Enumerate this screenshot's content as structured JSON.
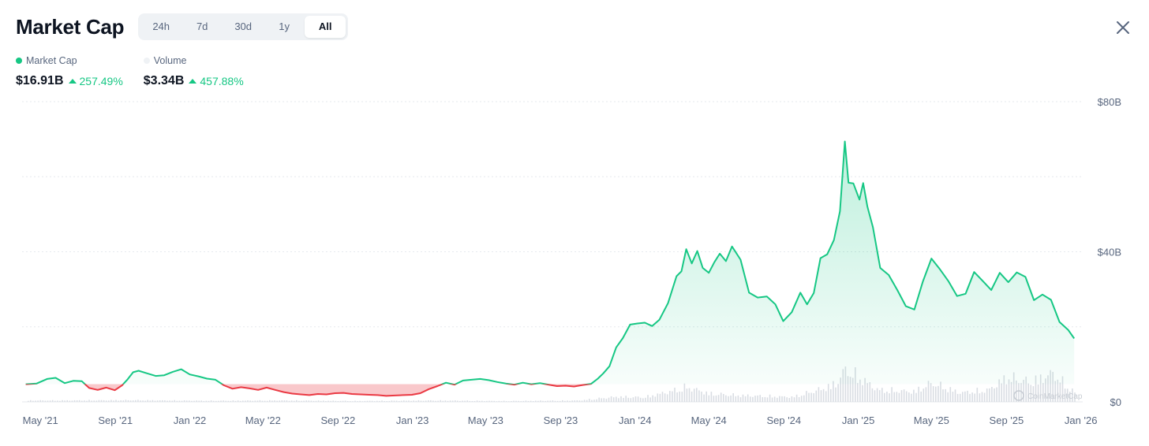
{
  "header": {
    "title": "Market Cap",
    "tabs": [
      {
        "label": "24h",
        "active": false
      },
      {
        "label": "7d",
        "active": false
      },
      {
        "label": "30d",
        "active": false
      },
      {
        "label": "1y",
        "active": false
      },
      {
        "label": "All",
        "active": true
      }
    ]
  },
  "legend": {
    "market_cap": {
      "label": "Market Cap",
      "value": "$16.91B",
      "change": "257.49%",
      "color": "#16c784"
    },
    "volume": {
      "label": "Volume",
      "value": "$3.34B",
      "change": "457.88%",
      "color": "#eff2f5"
    }
  },
  "watermark": "CoinMarketCap",
  "colors": {
    "up": "#16c784",
    "down": "#ea3943",
    "grid": "#e6e9ee",
    "volume_bar": "#d9dde3"
  },
  "chart_data": {
    "type": "area",
    "xlabel": "",
    "ylabel": "",
    "ylim": [
      0,
      80
    ],
    "y_unit": "B USD",
    "yticks": [
      {
        "value": 0,
        "label": "$0"
      },
      {
        "value": 40,
        "label": "$40B"
      },
      {
        "value": 80,
        "label": "$80B"
      }
    ],
    "y_gridlines": [
      0,
      20,
      40,
      60,
      80
    ],
    "xlim": [
      "2021-04-01",
      "2026-01-04"
    ],
    "xticks": [
      {
        "date": "2021-05-01",
        "label": "May '21"
      },
      {
        "date": "2021-09-01",
        "label": "Sep '21"
      },
      {
        "date": "2022-01-01",
        "label": "Jan '22"
      },
      {
        "date": "2022-05-01",
        "label": "May '22"
      },
      {
        "date": "2022-09-01",
        "label": "Sep '22"
      },
      {
        "date": "2023-01-01",
        "label": "Jan '23"
      },
      {
        "date": "2023-05-01",
        "label": "May '23"
      },
      {
        "date": "2023-09-01",
        "label": "Sep '23"
      },
      {
        "date": "2024-01-01",
        "label": "Jan '24"
      },
      {
        "date": "2024-05-01",
        "label": "May '24"
      },
      {
        "date": "2024-09-01",
        "label": "Sep '24"
      },
      {
        "date": "2025-01-01",
        "label": "Jan '25"
      },
      {
        "date": "2025-05-01",
        "label": "May '25"
      },
      {
        "date": "2025-09-01",
        "label": "Sep '25"
      },
      {
        "date": "2026-01-01",
        "label": "Jan '26"
      }
    ],
    "baseline": 4.73,
    "series": [
      {
        "name": "Market Cap",
        "points": [
          [
            "2021-04-07",
            4.7
          ],
          [
            "2021-04-25",
            4.9
          ],
          [
            "2021-05-12",
            6.1
          ],
          [
            "2021-05-26",
            6.4
          ],
          [
            "2021-06-10",
            5.0
          ],
          [
            "2021-06-24",
            5.6
          ],
          [
            "2021-07-08",
            5.5
          ],
          [
            "2021-07-20",
            3.7
          ],
          [
            "2021-08-03",
            3.2
          ],
          [
            "2021-08-17",
            3.8
          ],
          [
            "2021-08-31",
            3.1
          ],
          [
            "2021-09-12",
            4.4
          ],
          [
            "2021-09-21",
            6.0
          ],
          [
            "2021-09-30",
            7.9
          ],
          [
            "2021-10-09",
            8.3
          ],
          [
            "2021-10-23",
            7.6
          ],
          [
            "2021-11-06",
            6.9
          ],
          [
            "2021-11-20",
            7.1
          ],
          [
            "2021-12-04",
            8.0
          ],
          [
            "2021-12-18",
            8.7
          ],
          [
            "2022-01-01",
            7.3
          ],
          [
            "2022-01-15",
            6.8
          ],
          [
            "2022-01-29",
            6.2
          ],
          [
            "2022-02-12",
            5.9
          ],
          [
            "2022-02-26",
            4.4
          ],
          [
            "2022-03-12",
            3.5
          ],
          [
            "2022-03-26",
            3.9
          ],
          [
            "2022-04-09",
            3.6
          ],
          [
            "2022-04-23",
            3.2
          ],
          [
            "2022-05-07",
            3.8
          ],
          [
            "2022-05-21",
            3.2
          ],
          [
            "2022-06-04",
            2.6
          ],
          [
            "2022-06-18",
            2.2
          ],
          [
            "2022-07-02",
            2.0
          ],
          [
            "2022-07-16",
            1.8
          ],
          [
            "2022-07-30",
            2.1
          ],
          [
            "2022-08-13",
            2.0
          ],
          [
            "2022-08-27",
            2.3
          ],
          [
            "2022-09-10",
            2.4
          ],
          [
            "2022-09-24",
            2.1
          ],
          [
            "2022-10-08",
            2.0
          ],
          [
            "2022-10-22",
            1.9
          ],
          [
            "2022-11-05",
            1.8
          ],
          [
            "2022-11-19",
            1.6
          ],
          [
            "2022-12-03",
            1.7
          ],
          [
            "2022-12-17",
            1.8
          ],
          [
            "2022-12-31",
            1.9
          ],
          [
            "2023-01-14",
            2.3
          ],
          [
            "2023-01-28",
            3.4
          ],
          [
            "2023-02-11",
            4.2
          ],
          [
            "2023-02-25",
            5.1
          ],
          [
            "2023-03-11",
            4.6
          ],
          [
            "2023-03-25",
            5.7
          ],
          [
            "2023-04-08",
            5.9
          ],
          [
            "2023-04-22",
            6.1
          ],
          [
            "2023-05-06",
            5.8
          ],
          [
            "2023-05-20",
            5.3
          ],
          [
            "2023-06-03",
            4.9
          ],
          [
            "2023-06-17",
            4.6
          ],
          [
            "2023-07-01",
            5.1
          ],
          [
            "2023-07-15",
            4.7
          ],
          [
            "2023-07-29",
            5.0
          ],
          [
            "2023-08-12",
            4.6
          ],
          [
            "2023-08-26",
            4.2
          ],
          [
            "2023-09-09",
            4.3
          ],
          [
            "2023-09-23",
            4.1
          ],
          [
            "2023-10-07",
            4.5
          ],
          [
            "2023-10-21",
            4.8
          ],
          [
            "2023-11-01",
            6.2
          ],
          [
            "2023-11-10",
            7.6
          ],
          [
            "2023-11-20",
            9.5
          ],
          [
            "2023-12-01",
            14.5
          ],
          [
            "2023-12-12",
            17.0
          ],
          [
            "2023-12-24",
            20.6
          ],
          [
            "2024-01-05",
            20.9
          ],
          [
            "2024-01-17",
            21.1
          ],
          [
            "2024-01-29",
            20.2
          ],
          [
            "2024-02-10",
            21.9
          ],
          [
            "2024-02-24",
            26.3
          ],
          [
            "2024-03-09",
            33.5
          ],
          [
            "2024-03-17",
            34.8
          ],
          [
            "2024-03-25",
            40.7
          ],
          [
            "2024-04-03",
            36.9
          ],
          [
            "2024-04-12",
            40.2
          ],
          [
            "2024-04-21",
            35.7
          ],
          [
            "2024-05-01",
            34.4
          ],
          [
            "2024-05-10",
            37.2
          ],
          [
            "2024-05-19",
            39.5
          ],
          [
            "2024-05-29",
            37.5
          ],
          [
            "2024-06-08",
            41.4
          ],
          [
            "2024-06-22",
            37.9
          ],
          [
            "2024-07-06",
            29.1
          ],
          [
            "2024-07-20",
            27.8
          ],
          [
            "2024-08-04",
            28.1
          ],
          [
            "2024-08-18",
            26.0
          ],
          [
            "2024-08-31",
            21.5
          ],
          [
            "2024-09-14",
            23.9
          ],
          [
            "2024-09-28",
            29.1
          ],
          [
            "2024-10-09",
            26.0
          ],
          [
            "2024-10-20",
            29.0
          ],
          [
            "2024-10-31",
            38.3
          ],
          [
            "2024-11-11",
            39.3
          ],
          [
            "2024-11-22",
            43.1
          ],
          [
            "2024-12-02",
            50.8
          ],
          [
            "2024-12-10",
            69.4
          ],
          [
            "2024-12-16",
            58.4
          ],
          [
            "2024-12-24",
            58.2
          ],
          [
            "2025-01-03",
            53.9
          ],
          [
            "2025-01-09",
            58.3
          ],
          [
            "2025-01-16",
            52.0
          ],
          [
            "2025-01-25",
            46.6
          ],
          [
            "2025-02-06",
            35.7
          ],
          [
            "2025-02-20",
            33.8
          ],
          [
            "2025-03-06",
            29.8
          ],
          [
            "2025-03-20",
            25.5
          ],
          [
            "2025-04-03",
            24.6
          ],
          [
            "2025-04-17",
            32.1
          ],
          [
            "2025-05-01",
            38.2
          ],
          [
            "2025-05-15",
            35.3
          ],
          [
            "2025-05-29",
            32.1
          ],
          [
            "2025-06-12",
            28.2
          ],
          [
            "2025-06-26",
            28.8
          ],
          [
            "2025-07-10",
            34.6
          ],
          [
            "2025-07-24",
            32.2
          ],
          [
            "2025-08-07",
            29.8
          ],
          [
            "2025-08-21",
            34.4
          ],
          [
            "2025-09-04",
            31.9
          ],
          [
            "2025-09-18",
            34.5
          ],
          [
            "2025-10-02",
            33.3
          ],
          [
            "2025-10-16",
            27.1
          ],
          [
            "2025-10-30",
            28.6
          ],
          [
            "2025-11-13",
            27.2
          ],
          [
            "2025-11-27",
            21.3
          ],
          [
            "2025-12-11",
            19.2
          ],
          [
            "2025-12-21",
            16.91
          ]
        ]
      },
      {
        "name": "Volume",
        "points": [
          [
            "2021-06-01",
            0.5
          ],
          [
            "2021-10-01",
            0.6
          ],
          [
            "2022-02-01",
            0.4
          ],
          [
            "2022-06-01",
            0.5
          ],
          [
            "2022-10-01",
            0.3
          ],
          [
            "2023-02-01",
            0.5
          ],
          [
            "2023-06-01",
            0.3
          ],
          [
            "2023-10-01",
            0.5
          ],
          [
            "2023-12-01",
            1.8
          ],
          [
            "2024-01-15",
            1.6
          ],
          [
            "2024-03-01",
            3.8
          ],
          [
            "2024-03-25",
            5.2
          ],
          [
            "2024-05-01",
            2.9
          ],
          [
            "2024-06-15",
            2.3
          ],
          [
            "2024-08-01",
            2.0
          ],
          [
            "2024-09-15",
            1.7
          ],
          [
            "2024-11-01",
            4.5
          ],
          [
            "2024-11-25",
            6.4
          ],
          [
            "2024-12-10",
            11.2
          ],
          [
            "2025-01-05",
            8.1
          ],
          [
            "2025-02-01",
            4.2
          ],
          [
            "2025-04-01",
            3.6
          ],
          [
            "2025-05-01",
            6.6
          ],
          [
            "2025-06-15",
            3.2
          ],
          [
            "2025-08-01",
            4.1
          ],
          [
            "2025-09-01",
            8.6
          ],
          [
            "2025-10-10",
            6.9
          ],
          [
            "2025-11-15",
            9.9
          ],
          [
            "2025-12-20",
            3.34
          ]
        ]
      }
    ]
  }
}
